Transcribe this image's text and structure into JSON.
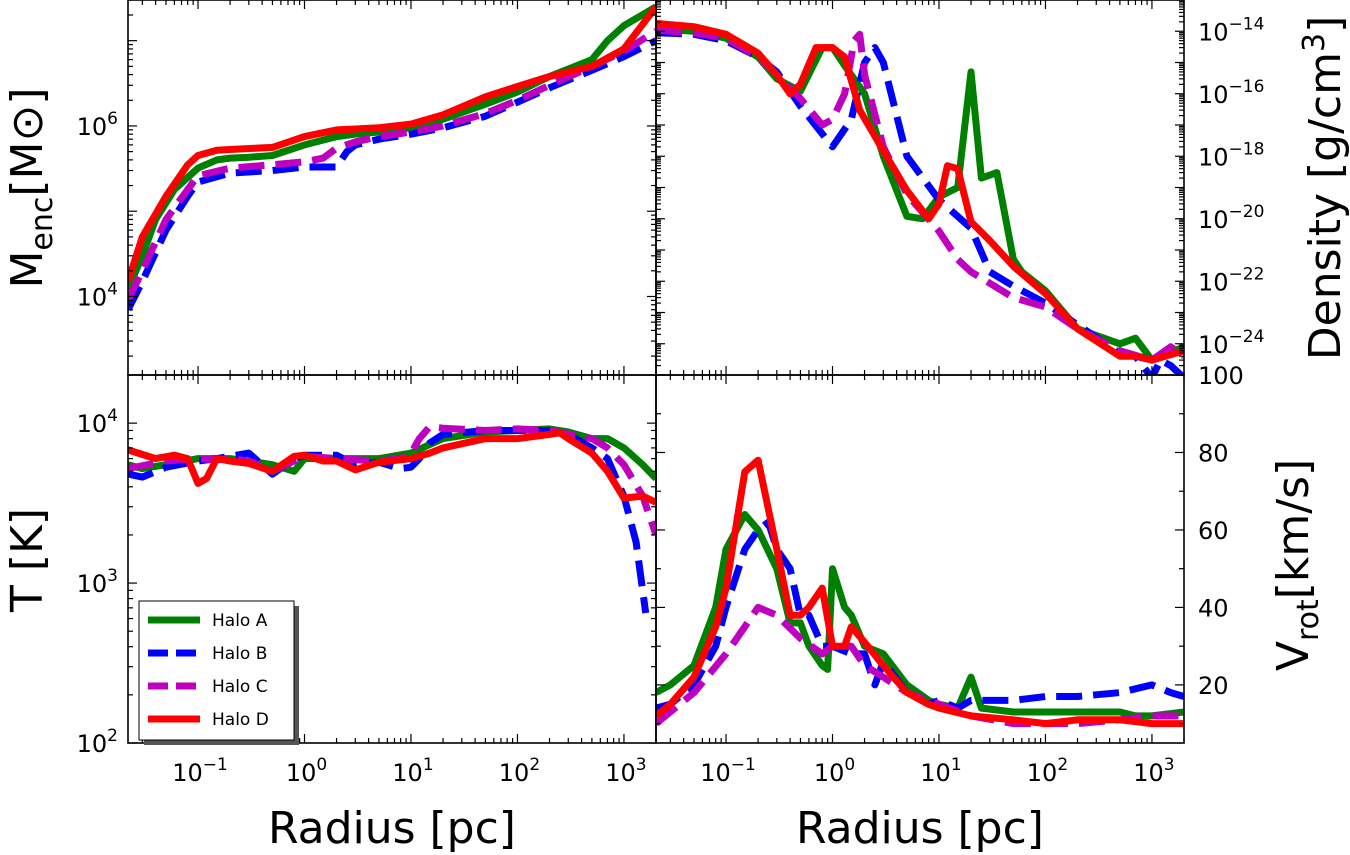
{
  "legend": {
    "entries": [
      {
        "label": "Halo A",
        "color": "#008000",
        "dash": false
      },
      {
        "label": "Halo B",
        "color": "#0000ff",
        "dash": true
      },
      {
        "label": "Halo C",
        "color": "#bf00bf",
        "dash": true
      },
      {
        "label": "Halo D",
        "color": "#ff0000",
        "dash": false
      }
    ],
    "placement": "lower-left of T panel"
  },
  "chart_data": [
    {
      "type": "line",
      "panel": "enclosed-mass",
      "xlabel": "Radius [pc]",
      "ylabel_main": "M",
      "ylabel_sub": "enc",
      "ylabel_rest": "[M⊙]",
      "xscale": "log",
      "yscale": "log",
      "xlim": [
        0.022,
        2000
      ],
      "ylim": [
        1200,
        30000000
      ],
      "yticks": [
        {
          "v": 10000,
          "m": "10",
          "e": "4"
        },
        {
          "v": 1000000,
          "m": "10",
          "e": "6"
        }
      ],
      "series": [
        {
          "name": "Halo A",
          "x": [
            0.022,
            0.03,
            0.04,
            0.06,
            0.1,
            0.15,
            0.2,
            0.3,
            0.5,
            1,
            2,
            3,
            5,
            10,
            20,
            50,
            100,
            200,
            500,
            700,
            1000,
            2000
          ],
          "y": [
            12000,
            30000,
            80000,
            180000,
            320000,
            400000,
            420000,
            430000,
            450000,
            600000,
            750000,
            800000,
            850000,
            950000,
            1200000,
            1800000,
            2500000,
            3800000,
            6000000,
            10000000,
            15000000,
            25000000
          ]
        },
        {
          "name": "Halo B",
          "x": [
            0.022,
            0.03,
            0.05,
            0.08,
            0.1,
            0.2,
            0.5,
            1,
            2,
            2.5,
            3,
            5,
            10,
            20,
            50,
            100,
            200,
            500,
            1000,
            2000
          ],
          "y": [
            7000,
            15000,
            60000,
            150000,
            220000,
            280000,
            300000,
            330000,
            330000,
            500000,
            600000,
            700000,
            800000,
            950000,
            1300000,
            1900000,
            2800000,
            4500000,
            6500000,
            10000000
          ]
        },
        {
          "name": "Halo C",
          "x": [
            0.022,
            0.03,
            0.05,
            0.08,
            0.1,
            0.2,
            0.5,
            1,
            1.5,
            2,
            3,
            5,
            10,
            20,
            50,
            100,
            200,
            500,
            1000,
            2000
          ],
          "y": [
            9000,
            20000,
            80000,
            180000,
            260000,
            320000,
            350000,
            380000,
            420000,
            550000,
            650000,
            750000,
            850000,
            1000000,
            1400000,
            2000000,
            3000000,
            5000000,
            7500000,
            13000000
          ]
        },
        {
          "name": "Halo D",
          "x": [
            0.022,
            0.03,
            0.05,
            0.08,
            0.1,
            0.15,
            0.2,
            0.5,
            1,
            2,
            3,
            5,
            10,
            20,
            50,
            100,
            200,
            500,
            1000,
            2000
          ],
          "y": [
            15000,
            50000,
            150000,
            350000,
            450000,
            520000,
            530000,
            560000,
            750000,
            900000,
            920000,
            950000,
            1050000,
            1350000,
            2200000,
            2900000,
            3800000,
            5000000,
            8000000,
            25000000
          ]
        }
      ]
    },
    {
      "type": "line",
      "panel": "density",
      "xlabel": "Radius [pc]",
      "ylabel": "Density [g/cm^3]",
      "xscale": "log",
      "yscale": "log",
      "xlim": [
        0.022,
        2000
      ],
      "ylim": [
        1e-25,
        1e-13
      ],
      "yticks": [
        {
          "v": 1e-24,
          "m": "10",
          "e": "−24"
        },
        {
          "v": 1e-22,
          "m": "10",
          "e": "−22"
        },
        {
          "v": 1e-20,
          "m": "10",
          "e": "−20"
        },
        {
          "v": 1e-18,
          "m": "10",
          "e": "−18"
        },
        {
          "v": 1e-16,
          "m": "10",
          "e": "−16"
        },
        {
          "v": 1e-14,
          "m": "10",
          "e": "−14"
        }
      ],
      "series": [
        {
          "name": "Halo A",
          "x": [
            0.022,
            0.05,
            0.1,
            0.2,
            0.3,
            0.5,
            0.8,
            1.0,
            1.3,
            2,
            3,
            5,
            7,
            10,
            15,
            20,
            25,
            35,
            50,
            60,
            100,
            200,
            500,
            700,
            1000,
            2000
          ],
          "y": [
            1.2e-14,
            1e-14,
            6e-15,
            1.5e-15,
            3e-16,
            1.2e-16,
            3e-15,
            3e-15,
            8e-16,
            1e-16,
            1e-18,
            1.2e-20,
            1e-20,
            5e-20,
            1e-19,
            5e-16,
            2e-19,
            3e-19,
            5e-22,
            2e-22,
            5e-23,
            3e-24,
            1e-24,
            1.5e-24,
            3e-25,
            8e-25
          ]
        },
        {
          "name": "Halo B",
          "x": [
            0.022,
            0.05,
            0.1,
            0.2,
            0.3,
            0.5,
            1,
            1.5,
            2,
            2.5,
            3,
            5,
            10,
            20,
            30,
            50,
            100,
            200,
            500,
            700,
            1000,
            1200,
            1500,
            2000
          ],
          "y": [
            9e-15,
            8e-15,
            5e-15,
            1.5e-15,
            5e-16,
            4e-17,
            2e-18,
            1.5e-17,
            1e-15,
            3e-15,
            1e-15,
            1e-18,
            4e-20,
            5e-21,
            2e-22,
            7e-23,
            2e-23,
            4e-24,
            5e-25,
            4e-25,
            8e-26,
            3e-25,
            2e-25,
            8e-26
          ]
        },
        {
          "name": "Halo C",
          "x": [
            0.022,
            0.05,
            0.1,
            0.2,
            0.3,
            0.5,
            0.8,
            1,
            1.3,
            1.6,
            1.8,
            2,
            3,
            5,
            10,
            15,
            20,
            50,
            100,
            200,
            500,
            1000,
            1500,
            2000
          ],
          "y": [
            1.1e-14,
            9e-15,
            6e-15,
            1.5e-15,
            4e-16,
            7e-17,
            1e-17,
            1.5e-17,
            1e-16,
            5e-15,
            8e-15,
            4e-16,
            2e-18,
            6e-20,
            4e-21,
            5e-22,
            2e-22,
            3e-23,
            1.5e-23,
            3e-24,
            6e-25,
            3e-25,
            8e-25,
            4e-25
          ]
        },
        {
          "name": "Halo D",
          "x": [
            0.022,
            0.05,
            0.1,
            0.2,
            0.3,
            0.4,
            0.5,
            0.7,
            1,
            1.3,
            1.8,
            3,
            5,
            8,
            10,
            12,
            15,
            20,
            30,
            50,
            100,
            200,
            500,
            700,
            1000,
            2000
          ],
          "y": [
            1.8e-14,
            1.4e-14,
            8e-15,
            2e-15,
            4e-16,
            1e-16,
            2e-16,
            3e-15,
            3e-15,
            1.5e-15,
            3e-17,
            1.5e-18,
            8e-20,
            1e-20,
            3e-20,
            5e-19,
            4e-19,
            8e-21,
            2e-21,
            3e-22,
            4e-23,
            3e-24,
            4e-25,
            4e-25,
            3e-25,
            6e-25
          ]
        }
      ]
    },
    {
      "type": "line",
      "panel": "temperature",
      "xlabel": "Radius [pc]",
      "ylabel": "T [K]",
      "xscale": "log",
      "yscale": "log",
      "xlim": [
        0.022,
        2000
      ],
      "ylim": [
        100,
        20000
      ],
      "yticks": [
        {
          "v": 100,
          "m": "10",
          "e": "2"
        },
        {
          "v": 1000,
          "m": "10",
          "e": "3"
        },
        {
          "v": 10000,
          "m": "10",
          "e": "4"
        }
      ],
      "series": [
        {
          "name": "Halo A",
          "x": [
            0.022,
            0.03,
            0.05,
            0.1,
            0.2,
            0.3,
            0.5,
            0.8,
            1,
            2,
            5,
            10,
            20,
            50,
            100,
            200,
            300,
            500,
            700,
            1000,
            1500,
            2000
          ],
          "y": [
            5500,
            5200,
            5500,
            6000,
            6000,
            5800,
            5500,
            5000,
            6000,
            6000,
            6000,
            6500,
            8000,
            8800,
            9000,
            9200,
            8800,
            8000,
            8000,
            7000,
            5500,
            4500
          ]
        },
        {
          "name": "Halo B",
          "x": [
            0.022,
            0.03,
            0.05,
            0.1,
            0.15,
            0.2,
            0.3,
            0.5,
            0.8,
            1,
            2,
            3,
            5,
            8,
            10,
            12,
            15,
            20,
            50,
            100,
            200,
            300,
            500,
            700,
            1000,
            1300,
            1600
          ],
          "y": [
            4800,
            4600,
            5300,
            5800,
            6000,
            6200,
            6500,
            4800,
            6000,
            6300,
            6300,
            5500,
            5700,
            5200,
            5300,
            6000,
            7500,
            8500,
            9000,
            9000,
            9000,
            8500,
            7000,
            6000,
            3500,
            1800,
            650
          ]
        },
        {
          "name": "Halo C",
          "x": [
            0.022,
            0.05,
            0.1,
            0.15,
            0.2,
            0.3,
            0.5,
            0.8,
            1,
            2,
            5,
            8,
            10,
            12,
            15,
            20,
            50,
            100,
            200,
            500,
            700,
            1000,
            1500,
            2000
          ],
          "y": [
            5200,
            5800,
            6000,
            5900,
            6000,
            5800,
            5000,
            5800,
            6200,
            6000,
            5800,
            6000,
            6500,
            8000,
            9500,
            9300,
            9000,
            9200,
            9000,
            8000,
            7000,
            5500,
            3500,
            2000
          ]
        },
        {
          "name": "Halo D",
          "x": [
            0.022,
            0.04,
            0.06,
            0.08,
            0.1,
            0.12,
            0.15,
            0.2,
            0.3,
            0.5,
            0.8,
            1,
            1.5,
            2,
            3,
            5,
            10,
            15,
            20,
            50,
            100,
            200,
            250,
            300,
            500,
            700,
            1000,
            1500,
            2000
          ],
          "y": [
            6800,
            6000,
            6300,
            6000,
            4200,
            4500,
            6000,
            5800,
            5600,
            5000,
            6200,
            6300,
            5800,
            5800,
            5100,
            5700,
            6000,
            6500,
            7000,
            8000,
            8000,
            8500,
            8700,
            8000,
            6500,
            5000,
            3400,
            3500,
            3200
          ]
        }
      ]
    },
    {
      "type": "line",
      "panel": "rotation-velocity",
      "xlabel": "Radius [pc]",
      "ylabel_main": "V",
      "ylabel_sub": "rot",
      "ylabel_rest": "[km/s]",
      "xscale": "log",
      "yscale": "linear",
      "xlim": [
        0.022,
        2000
      ],
      "ylim": [
        5,
        100
      ],
      "yticks": [
        {
          "v": 20,
          "label": "20"
        },
        {
          "v": 40,
          "label": "40"
        },
        {
          "v": 60,
          "label": "60"
        },
        {
          "v": 80,
          "label": "80"
        },
        {
          "v": 100,
          "label": "100"
        }
      ],
      "series": [
        {
          "name": "Halo A",
          "x": [
            0.022,
            0.03,
            0.05,
            0.08,
            0.1,
            0.15,
            0.2,
            0.3,
            0.4,
            0.5,
            0.6,
            0.8,
            0.9,
            1,
            1.3,
            1.5,
            2,
            3,
            5,
            8,
            10,
            15,
            20,
            25,
            50,
            100,
            200,
            500,
            700,
            1000,
            2000
          ],
          "y": [
            18,
            20,
            25,
            40,
            55,
            64,
            60,
            50,
            36,
            36,
            30,
            25,
            24,
            50,
            40,
            38,
            30,
            28,
            20,
            16,
            15,
            14,
            22,
            14,
            13,
            13,
            13,
            13,
            12,
            12,
            13
          ]
        },
        {
          "name": "Halo B",
          "x": [
            0.022,
            0.03,
            0.05,
            0.08,
            0.1,
            0.15,
            0.2,
            0.25,
            0.3,
            0.4,
            0.5,
            0.6,
            0.8,
            1,
            1.5,
            2,
            2.5,
            3,
            5,
            8,
            10,
            15,
            20,
            50,
            100,
            200,
            500,
            700,
            1000,
            1500,
            2000
          ],
          "y": [
            14,
            15,
            20,
            30,
            40,
            55,
            60,
            62,
            55,
            50,
            38,
            38,
            30,
            30,
            28,
            28,
            20,
            26,
            18,
            15,
            16,
            14,
            16,
            16,
            17,
            17,
            18,
            19,
            20,
            18,
            17
          ]
        },
        {
          "name": "Halo C",
          "x": [
            0.022,
            0.05,
            0.1,
            0.15,
            0.2,
            0.3,
            0.5,
            0.8,
            1,
            1.5,
            2,
            3,
            5,
            10,
            20,
            50,
            100,
            200,
            500,
            1000,
            2000
          ],
          "y": [
            10,
            18,
            28,
            35,
            40,
            38,
            32,
            28,
            30,
            30,
            25,
            22,
            18,
            15,
            12,
            10,
            10,
            10,
            11,
            12,
            12
          ]
        },
        {
          "name": "Halo D",
          "x": [
            0.022,
            0.03,
            0.05,
            0.08,
            0.1,
            0.15,
            0.2,
            0.3,
            0.4,
            0.5,
            0.6,
            0.8,
            1,
            1.3,
            1.5,
            2,
            3,
            5,
            8,
            10,
            20,
            50,
            100,
            200,
            500,
            1000,
            2000
          ],
          "y": [
            12,
            15,
            22,
            35,
            45,
            75,
            78,
            55,
            38,
            38,
            40,
            45,
            30,
            30,
            35,
            31,
            25,
            18,
            15,
            14,
            12,
            11,
            10,
            11,
            11,
            10,
            10
          ]
        }
      ]
    }
  ]
}
